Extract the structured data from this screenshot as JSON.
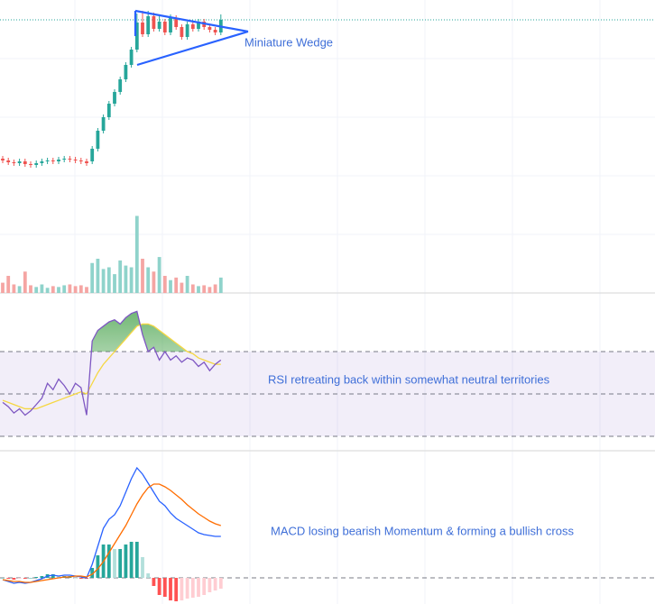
{
  "chart_data": [
    {
      "type": "candlestick",
      "open": [
        154,
        152,
        150,
        149,
        151,
        148,
        147,
        149,
        151,
        152,
        151,
        153,
        154,
        153,
        152,
        151,
        151,
        165,
        185,
        200,
        215,
        228,
        242,
        258,
        275,
        305,
        292,
        312,
        298,
        306,
        294,
        310,
        300,
        289,
        303,
        298,
        306,
        300,
        297,
        294
      ],
      "high": [
        157,
        155,
        153,
        154,
        154,
        151,
        152,
        154,
        155,
        155,
        156,
        157,
        157,
        156,
        155,
        154,
        168,
        188,
        203,
        218,
        231,
        245,
        261,
        278,
        315,
        318,
        318,
        316,
        312,
        309,
        314,
        313,
        303,
        306,
        306,
        309,
        309,
        303,
        300,
        314
      ],
      "low": [
        149,
        147,
        146,
        146,
        145,
        144,
        144,
        146,
        148,
        148,
        148,
        150,
        150,
        149,
        148,
        146,
        148,
        162,
        182,
        197,
        212,
        225,
        239,
        255,
        272,
        289,
        289,
        295,
        295,
        291,
        291,
        297,
        286,
        286,
        295,
        295,
        297,
        294,
        291,
        291
      ],
      "close": [
        152,
        150,
        149,
        151,
        148,
        147,
        149,
        151,
        152,
        151,
        153,
        154,
        153,
        152,
        151,
        149,
        165,
        185,
        200,
        215,
        228,
        242,
        258,
        275,
        305,
        292,
        312,
        298,
        306,
        294,
        310,
        300,
        289,
        303,
        298,
        306,
        300,
        297,
        294,
        308
      ],
      "ylim": [
        0,
        330
      ],
      "up_color": "#26a69a",
      "down_color": "#ef5350",
      "annotation": "Miniature Wedge"
    },
    {
      "type": "volume",
      "values": [
        12,
        20,
        10,
        8,
        25,
        9,
        7,
        10,
        6,
        8,
        7,
        9,
        10,
        8,
        9,
        7,
        35,
        40,
        28,
        30,
        22,
        38,
        32,
        30,
        90,
        40,
        30,
        25,
        42,
        20,
        15,
        18,
        12,
        20,
        10,
        8,
        9,
        7,
        10,
        18
      ],
      "ylim": [
        0,
        100
      ],
      "up_color": "#8fd3cb",
      "down_color": "#f5a5a3"
    },
    {
      "type": "rsi",
      "series": [
        {
          "color": "#7e57c2",
          "values": [
            46,
            44,
            41,
            43,
            40,
            42,
            45,
            48,
            55,
            52,
            57,
            54,
            50,
            55,
            53,
            40,
            75,
            80,
            82,
            84,
            85,
            83,
            86,
            88,
            89,
            78,
            70,
            72,
            66,
            70,
            66,
            68,
            65,
            67,
            66,
            63,
            65,
            61,
            64,
            66
          ]
        },
        {
          "color": "#f5d742",
          "values": [
            47,
            46,
            45,
            44,
            43,
            43,
            43,
            44,
            45,
            46,
            47,
            48,
            49,
            50,
            51,
            50,
            55,
            60,
            64,
            67,
            70,
            73,
            76,
            79,
            82,
            83,
            83,
            82,
            80,
            78,
            76,
            74,
            72,
            70,
            69,
            67,
            66,
            65,
            64,
            64
          ]
        }
      ],
      "ylim": [
        0,
        100
      ],
      "bands": [
        70,
        50,
        30
      ],
      "annotation": "RSI retreating back within somewhat neutral territories"
    },
    {
      "type": "macd",
      "series": [
        {
          "color": "#2962ff",
          "values": [
            -2,
            -4,
            -6,
            -5,
            -6,
            -5,
            -3,
            -1,
            2,
            3,
            2,
            3,
            3,
            2,
            1,
            0,
            15,
            35,
            55,
            65,
            70,
            80,
            95,
            110,
            122,
            115,
            105,
            95,
            85,
            80,
            72,
            66,
            62,
            58,
            54,
            50,
            48,
            47,
            46,
            46
          ]
        },
        {
          "color": "#ff6d00",
          "values": [
            -2,
            -3,
            -4,
            -4,
            -5,
            -5,
            -4,
            -3,
            -2,
            -1,
            0,
            1,
            1,
            2,
            2,
            1,
            4,
            10,
            18,
            28,
            38,
            48,
            58,
            70,
            82,
            92,
            100,
            104,
            104,
            101,
            97,
            92,
            87,
            81,
            76,
            71,
            67,
            63,
            60,
            58
          ]
        }
      ],
      "histogram": [
        0,
        -1,
        -2,
        -1,
        -1,
        0,
        1,
        2,
        4,
        4,
        2,
        2,
        2,
        0,
        -1,
        -1,
        11,
        25,
        37,
        37,
        32,
        32,
        37,
        40,
        40,
        23,
        5,
        -9,
        -19,
        -21,
        -25,
        -26,
        -25,
        -23,
        -22,
        -21,
        -19,
        -16,
        -14,
        -12
      ],
      "ylim": [
        -29,
        141
      ],
      "hlines": [
        0
      ],
      "annotation": "MACD losing bearish Momentum & forming a bullish cross"
    }
  ]
}
